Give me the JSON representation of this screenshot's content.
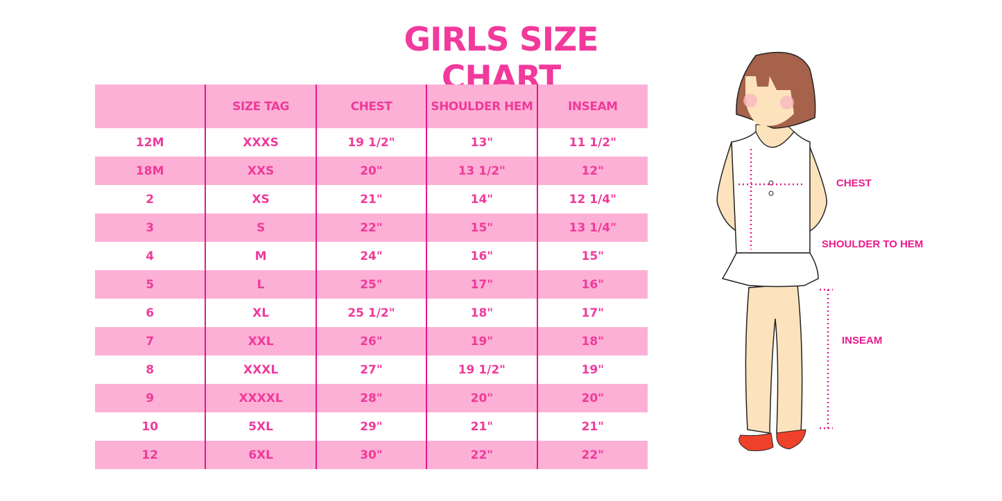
{
  "title": "GIRLS SIZE CHART",
  "table": {
    "headers": [
      "",
      "SIZE TAG",
      "CHEST",
      "SHOULDER HEM",
      "INSEAM"
    ],
    "rows": [
      [
        "12M",
        "XXXS",
        "19 1/2\"",
        "13\"",
        "11 1/2\""
      ],
      [
        "18M",
        "XXS",
        "20\"",
        "13 1/2\"",
        "12\""
      ],
      [
        "2",
        "XS",
        "21\"",
        "14\"",
        "12 1/4\""
      ],
      [
        "3",
        "S",
        "22\"",
        "15\"",
        "13 1/4\""
      ],
      [
        "4",
        "M",
        "24\"",
        "16\"",
        "15\""
      ],
      [
        "5",
        "L",
        "25\"",
        "17\"",
        "16\""
      ],
      [
        "6",
        "XL",
        "25 1/2\"",
        "18\"",
        "17\""
      ],
      [
        "7",
        "XXL",
        "26\"",
        "19\"",
        "18\""
      ],
      [
        "8",
        "XXXL",
        "27\"",
        "19 1/2\"",
        "19\""
      ],
      [
        "9",
        "XXXXL",
        "28\"",
        "20\"",
        "20\""
      ],
      [
        "10",
        "5XL",
        "29\"",
        "21\"",
        "21\""
      ],
      [
        "12",
        "6XL",
        "30\"",
        "22\"",
        "22\""
      ]
    ]
  },
  "figure": {
    "labels": {
      "chest": "CHEST",
      "shoulder": "SHOULDER TO HEM",
      "inseam": "INSEAM"
    }
  },
  "colors": {
    "accent": "#f2399c",
    "row_pink": "#fdb0d5",
    "divider": "#e8168c"
  }
}
